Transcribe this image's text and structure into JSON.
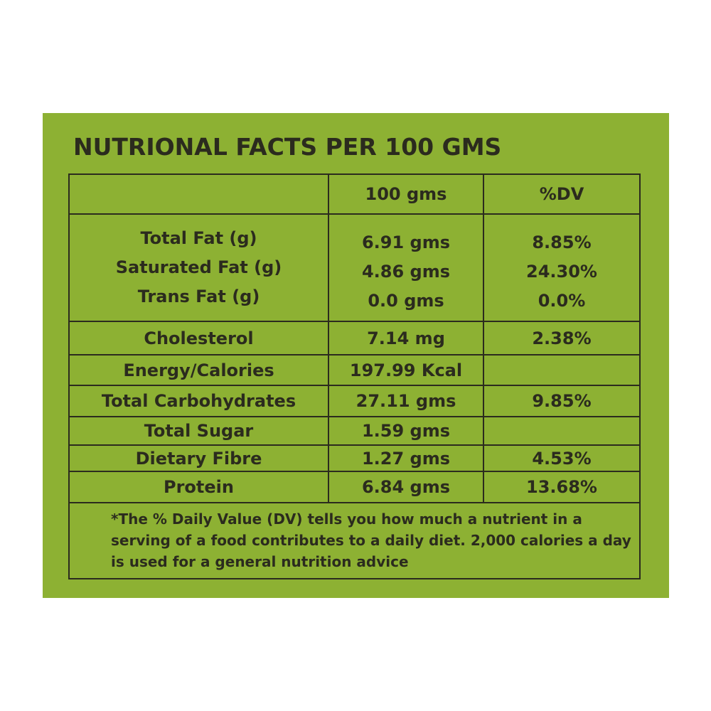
{
  "title": "NUTRIONAL FACTS PER 100 GMS",
  "header": {
    "label": "",
    "amount": "100 gms",
    "dv": "%DV"
  },
  "fat_group": [
    {
      "label": "Total Fat (g)",
      "amount": "6.91 gms",
      "dv": "8.85%"
    },
    {
      "label": "Saturated Fat (g)",
      "amount": "4.86 gms",
      "dv": "24.30%"
    },
    {
      "label": "Trans Fat (g)",
      "amount": "0.0 gms",
      "dv": "0.0%"
    }
  ],
  "rows": [
    {
      "label": "Cholesterol",
      "amount": "7.14 mg",
      "dv": "2.38%"
    },
    {
      "label": "Energy/Calories",
      "amount": "197.99 Kcal",
      "dv": ""
    },
    {
      "label": "Total Carbohydrates",
      "amount": "27.11 gms",
      "dv": "9.85%"
    },
    {
      "label": "Total Sugar",
      "amount": "1.59 gms",
      "dv": ""
    },
    {
      "label": "Dietary Fibre",
      "amount": "1.27 gms",
      "dv": "4.53%"
    },
    {
      "label": "Protein",
      "amount": "6.84 gms",
      "dv": "13.68%"
    }
  ],
  "footnote": "*The % Daily Value (DV) tells you how much a nutrient in a serving of a food contributes to a daily diet. 2,000 calories a day is used for a general nutrition advice",
  "colors": {
    "panel_background": "#8db133",
    "text_and_borders": "#2b2b1e",
    "page_background": "#ffffff"
  }
}
